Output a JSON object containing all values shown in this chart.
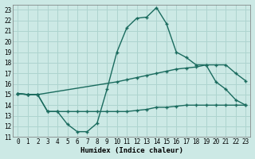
{
  "xlabel": "Humidex (Indice chaleur)",
  "xlim": [
    -0.5,
    23.5
  ],
  "ylim": [
    11,
    23.5
  ],
  "yticks": [
    11,
    12,
    13,
    14,
    15,
    16,
    17,
    18,
    19,
    20,
    21,
    22,
    23
  ],
  "xticks": [
    0,
    1,
    2,
    3,
    4,
    5,
    6,
    7,
    8,
    9,
    10,
    11,
    12,
    13,
    14,
    15,
    16,
    17,
    18,
    19,
    20,
    21,
    22,
    23
  ],
  "background_color": "#cce9e5",
  "line_color": "#1a6b5e",
  "grid_color": "#aed4cf",
  "line1_x": [
    0,
    1,
    2,
    3,
    4,
    5,
    6,
    7,
    8,
    9,
    10,
    11,
    12,
    13,
    14,
    15,
    16,
    17,
    18,
    19,
    20,
    21,
    22,
    23
  ],
  "line1_y": [
    15.1,
    15.0,
    15.0,
    13.4,
    13.4,
    12.2,
    11.5,
    11.5,
    12.3,
    15.5,
    19.0,
    21.3,
    22.2,
    22.3,
    23.2,
    21.7,
    19.0,
    18.5,
    17.8,
    17.8,
    16.2,
    15.5,
    14.5,
    14.0
  ],
  "line2_x": [
    0,
    1,
    2,
    10,
    11,
    12,
    13,
    14,
    15,
    16,
    17,
    18,
    19,
    20,
    21,
    22,
    23
  ],
  "line2_y": [
    15.1,
    15.0,
    15.0,
    16.2,
    16.4,
    16.6,
    16.8,
    17.0,
    17.2,
    17.4,
    17.5,
    17.6,
    17.8,
    17.8,
    17.8,
    17.0,
    16.3
  ],
  "line3_x": [
    0,
    1,
    2,
    3,
    4,
    5,
    6,
    7,
    8,
    9,
    10,
    11,
    12,
    13,
    14,
    15,
    16,
    17,
    18,
    19,
    20,
    21,
    22,
    23
  ],
  "line3_y": [
    15.1,
    15.0,
    15.0,
    13.4,
    13.4,
    13.4,
    13.4,
    13.4,
    13.4,
    13.4,
    13.4,
    13.4,
    13.5,
    13.6,
    13.8,
    13.8,
    13.9,
    14.0,
    14.0,
    14.0,
    14.0,
    14.0,
    14.0,
    14.0
  ]
}
